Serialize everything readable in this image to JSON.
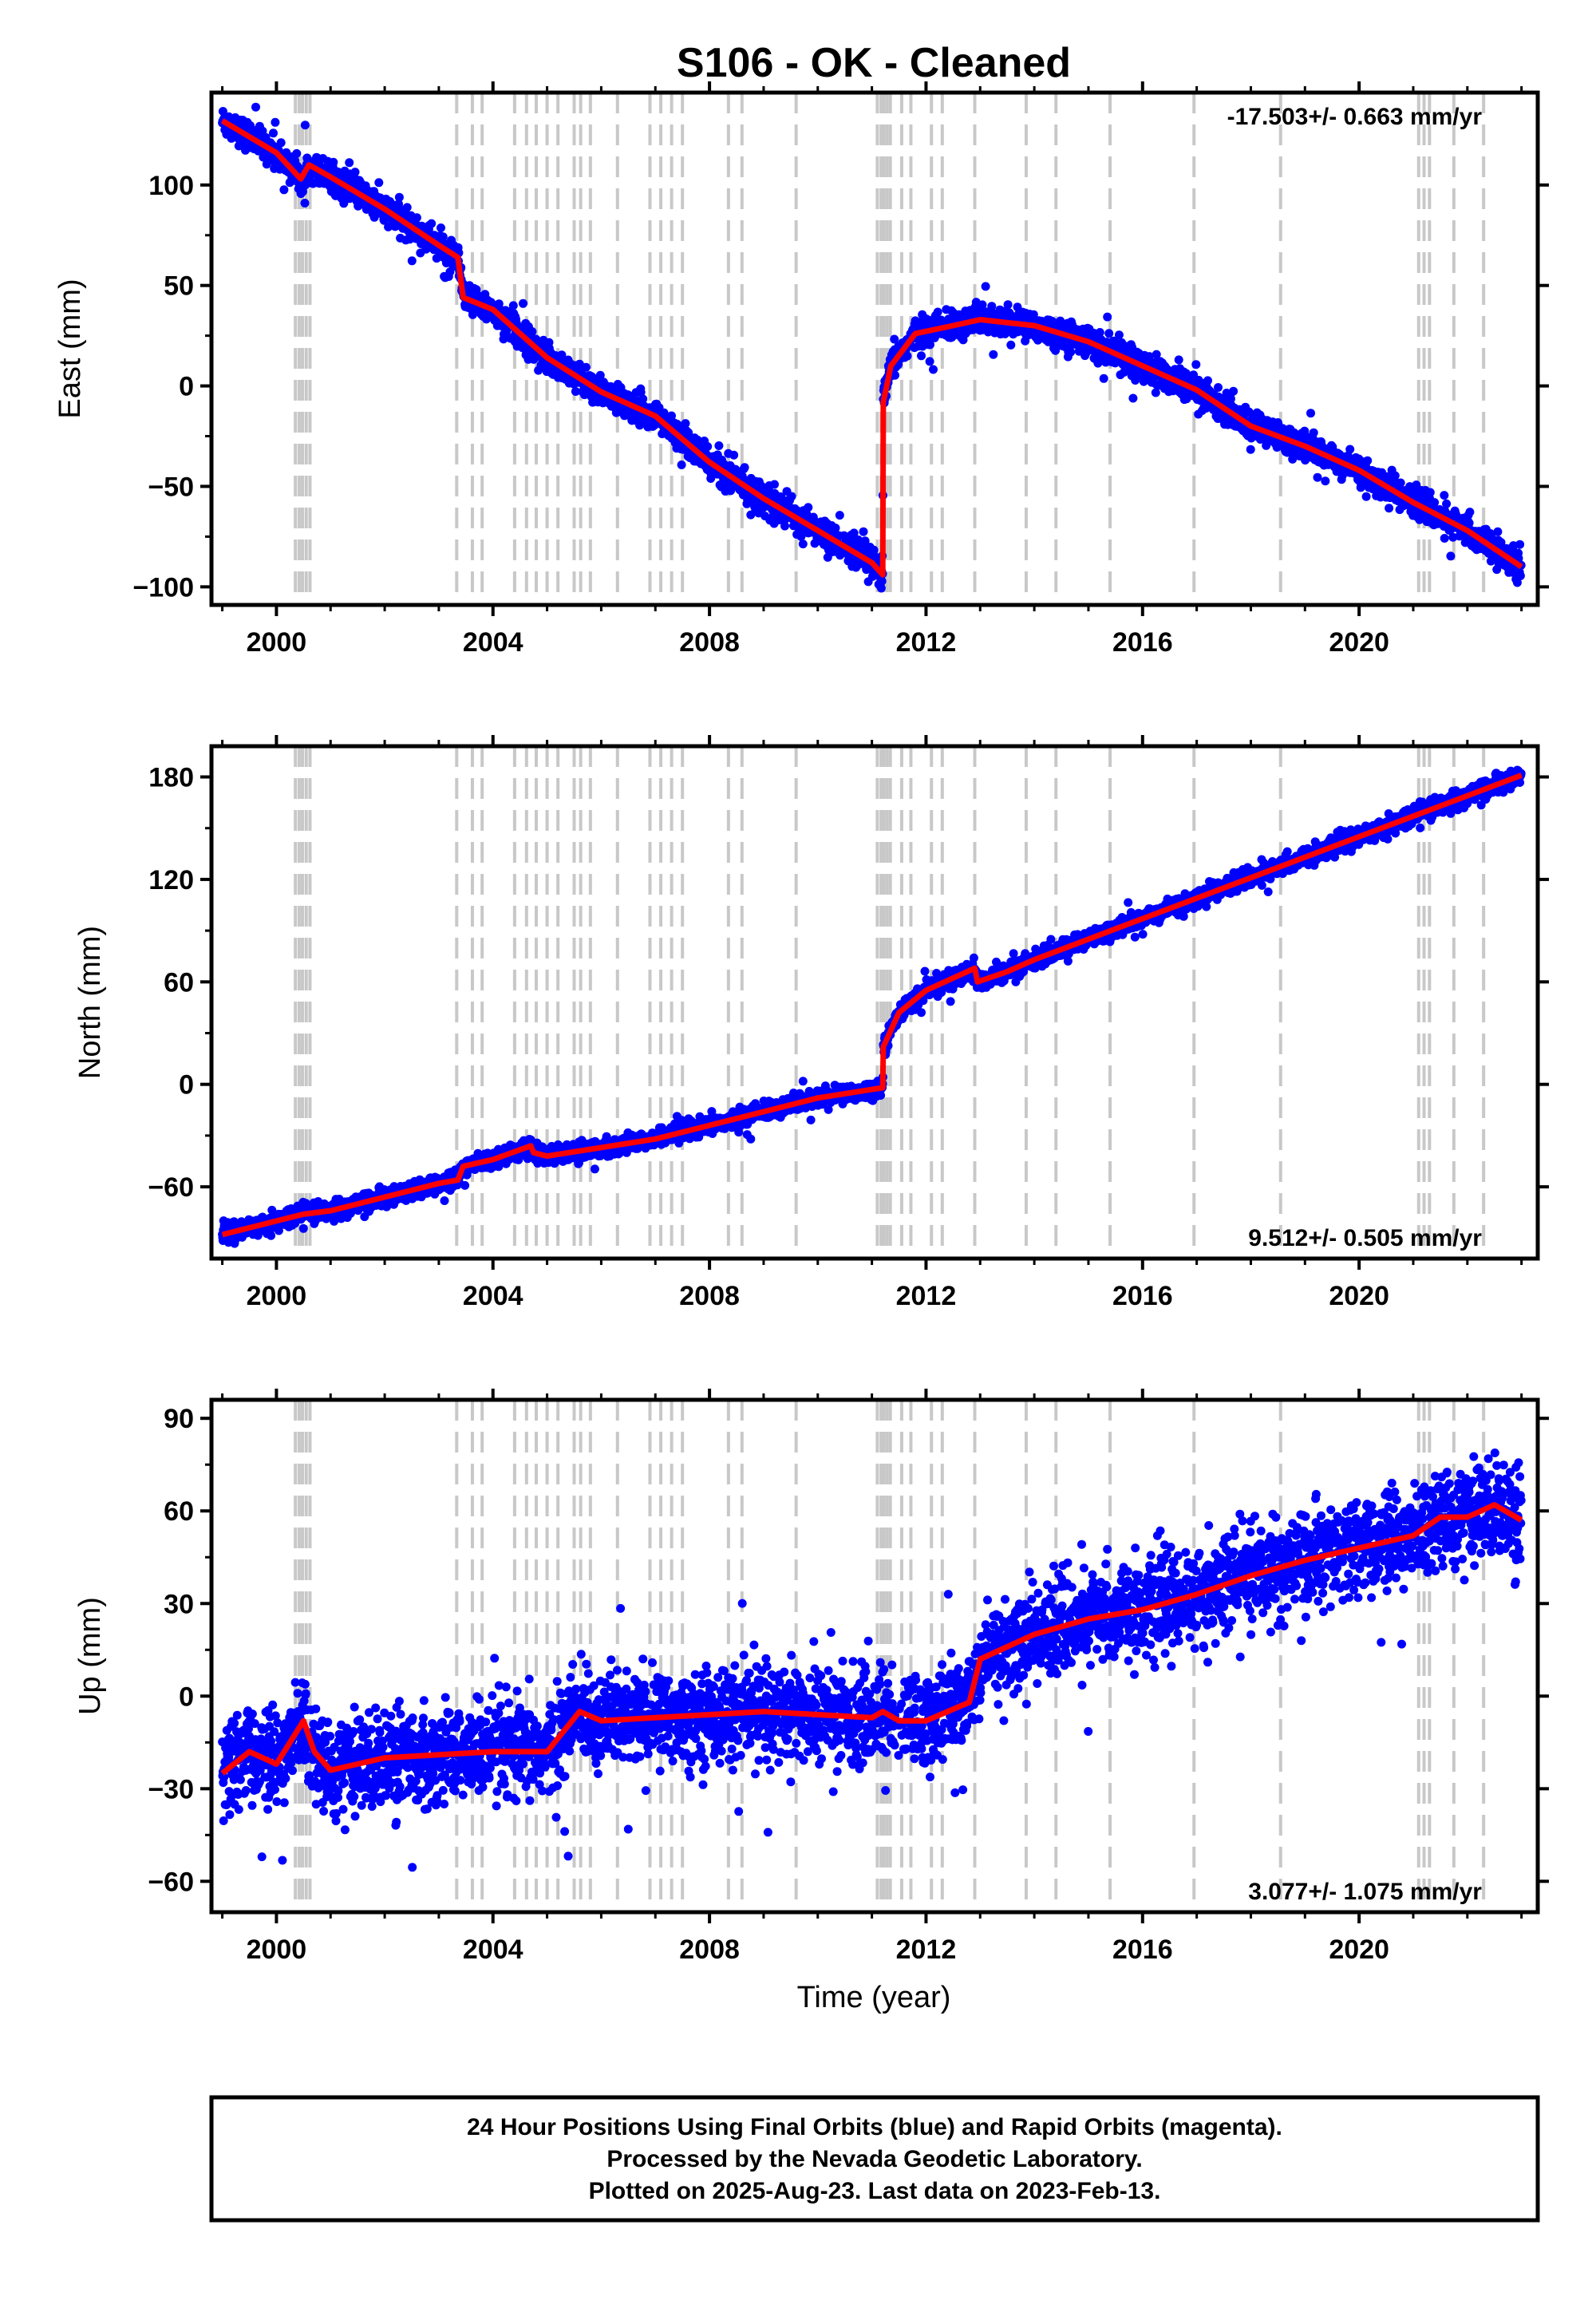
{
  "title": "S106  - OK - Cleaned",
  "x_axis_label": "Time (year)",
  "footer": {
    "line1": "24 Hour Positions Using Final Orbits (blue) and Rapid Orbits (magenta).",
    "line2": "Processed by the Nevada Geodetic Laboratory.",
    "line3": "Plotted on 2025-Aug-23. Last data on 2023-Feb-13."
  },
  "colors": {
    "data": "#0000ff",
    "model": "#ff0000",
    "events": "#c8c8c8",
    "frame": "#000000"
  },
  "chart_data": [
    {
      "type": "scatter",
      "name": "east",
      "ylabel": "East (mm)",
      "xlim": [
        1998.8,
        2023.3
      ],
      "ylim": [
        -109,
        146
      ],
      "yticks": [
        -100,
        -50,
        0,
        50,
        100
      ],
      "xticks": [
        2000,
        2004,
        2008,
        2012,
        2016,
        2020
      ],
      "rate_label": "-17.503+/- 0.663 mm/yr",
      "rate_position": "top-right",
      "grid": false,
      "model": {
        "x": [
          1999.0,
          1999.5,
          2000.0,
          2000.45,
          2000.6,
          2001.0,
          2002.0,
          2003.0,
          2003.35,
          2003.45,
          2004.0,
          2005.0,
          2006.0,
          2007.0,
          2008.0,
          2009.0,
          2010.0,
          2011.0,
          2011.2,
          2011.21,
          2011.35,
          2011.8,
          2012.5,
          2013.0,
          2014.0,
          2015.0,
          2016.0,
          2017.0,
          2018.0,
          2019.0,
          2020.0,
          2021.0,
          2022.0,
          2023.0
        ],
        "y": [
          132,
          124,
          116,
          103,
          110,
          104,
          88,
          70,
          64,
          44,
          38,
          14,
          -3,
          -15,
          -38,
          -56,
          -72,
          -88,
          -94,
          -8,
          10,
          26,
          30,
          33,
          30,
          22,
          10,
          -2,
          -20,
          -30,
          -42,
          -58,
          -72,
          -90
        ]
      }
    },
    {
      "type": "scatter",
      "name": "north",
      "ylabel": "North (mm)",
      "xlim": [
        1998.8,
        2023.3
      ],
      "ylim": [
        -102,
        198
      ],
      "yticks": [
        -60,
        0,
        60,
        120,
        180
      ],
      "xticks": [
        2000,
        2004,
        2008,
        2012,
        2016,
        2020
      ],
      "rate_label": "9.512+/- 0.505 mm/yr",
      "rate_position": "bottom-right",
      "grid": false,
      "model": {
        "x": [
          1999.0,
          2000.0,
          2000.5,
          2001.0,
          2002.0,
          2003.0,
          2003.35,
          2003.45,
          2004.0,
          2004.7,
          2004.75,
          2005.0,
          2006.0,
          2007.0,
          2008.0,
          2009.0,
          2010.0,
          2011.0,
          2011.2,
          2011.21,
          2011.5,
          2012.0,
          2012.9,
          2012.95,
          2013.5,
          2014.0,
          2015.0,
          2016.0,
          2017.0,
          2018.0,
          2019.0,
          2020.0,
          2021.0,
          2022.0,
          2023.0
        ],
        "y": [
          -88,
          -80,
          -76,
          -74,
          -66,
          -58,
          -56,
          -48,
          -44,
          -36,
          -40,
          -42,
          -37,
          -32,
          -24,
          -16,
          -8,
          -3,
          -2,
          22,
          42,
          55,
          68,
          60,
          66,
          73,
          85,
          97,
          109,
          121,
          133,
          145,
          157,
          169,
          181
        ]
      }
    },
    {
      "type": "scatter",
      "name": "up",
      "ylabel": "Up (mm)",
      "xlim": [
        1998.8,
        2023.3
      ],
      "ylim": [
        -70,
        96
      ],
      "yticks": [
        -60,
        -30,
        0,
        30,
        60,
        90
      ],
      "xticks": [
        2000,
        2004,
        2008,
        2012,
        2016,
        2020
      ],
      "rate_label": "3.077+/- 1.075 mm/yr",
      "rate_position": "bottom-right",
      "grid": false,
      "model": {
        "x": [
          1999.0,
          1999.5,
          2000.0,
          2000.5,
          2000.7,
          2001.0,
          2002.0,
          2003.0,
          2004.0,
          2005.0,
          2005.6,
          2006.0,
          2007.0,
          2008.0,
          2009.0,
          2010.0,
          2011.0,
          2011.2,
          2011.5,
          2012.0,
          2012.8,
          2013.0,
          2014.0,
          2015.0,
          2016.0,
          2017.0,
          2018.0,
          2019.0,
          2020.0,
          2021.0,
          2021.5,
          2022.0,
          2022.5,
          2023.0
        ],
        "y": [
          -25,
          -18,
          -22,
          -8,
          -18,
          -24,
          -20,
          -19,
          -18,
          -18,
          -5,
          -8,
          -7,
          -6,
          -5,
          -6,
          -7,
          -5,
          -8,
          -8,
          -2,
          12,
          20,
          25,
          28,
          33,
          39,
          44,
          48,
          52,
          58,
          58,
          62,
          57
        ]
      }
    }
  ]
}
